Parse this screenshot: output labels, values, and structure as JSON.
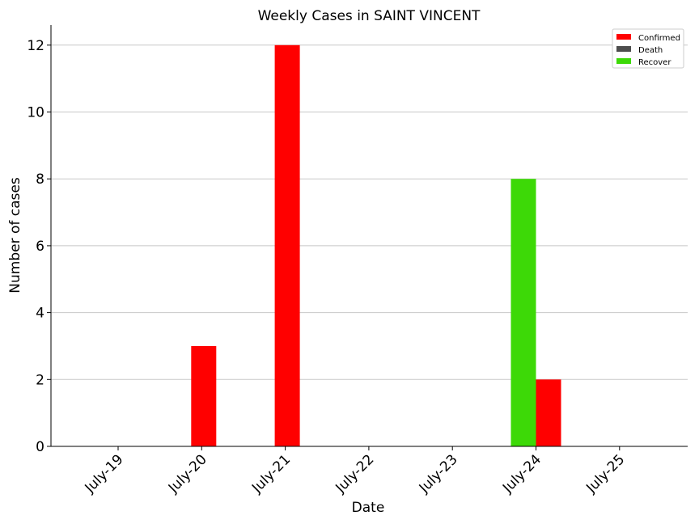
{
  "chart_data": {
    "type": "bar",
    "title": "Weekly Cases in SAINT VINCENT",
    "xlabel": "Date",
    "ylabel": "Number of cases",
    "categories": [
      "July-19",
      "July-20",
      "July-21",
      "July-22",
      "July-23",
      "July-24",
      "July-25"
    ],
    "series": [
      {
        "name": "Confirmed",
        "color": "#ff0000",
        "values": [
          0,
          3,
          12,
          0,
          0,
          2,
          0
        ]
      },
      {
        "name": "Death",
        "color": "#4d4d4d",
        "values": [
          0,
          0,
          0,
          0,
          0,
          0,
          0
        ]
      },
      {
        "name": "Recover",
        "color": "#3dd907",
        "values": [
          0,
          0,
          0,
          0,
          0,
          8,
          0
        ]
      }
    ],
    "ylim": [
      0,
      12.6
    ],
    "yticks": [
      0,
      2,
      4,
      6,
      8,
      10,
      12
    ],
    "grid": "horizontal",
    "legend": "top-right"
  }
}
